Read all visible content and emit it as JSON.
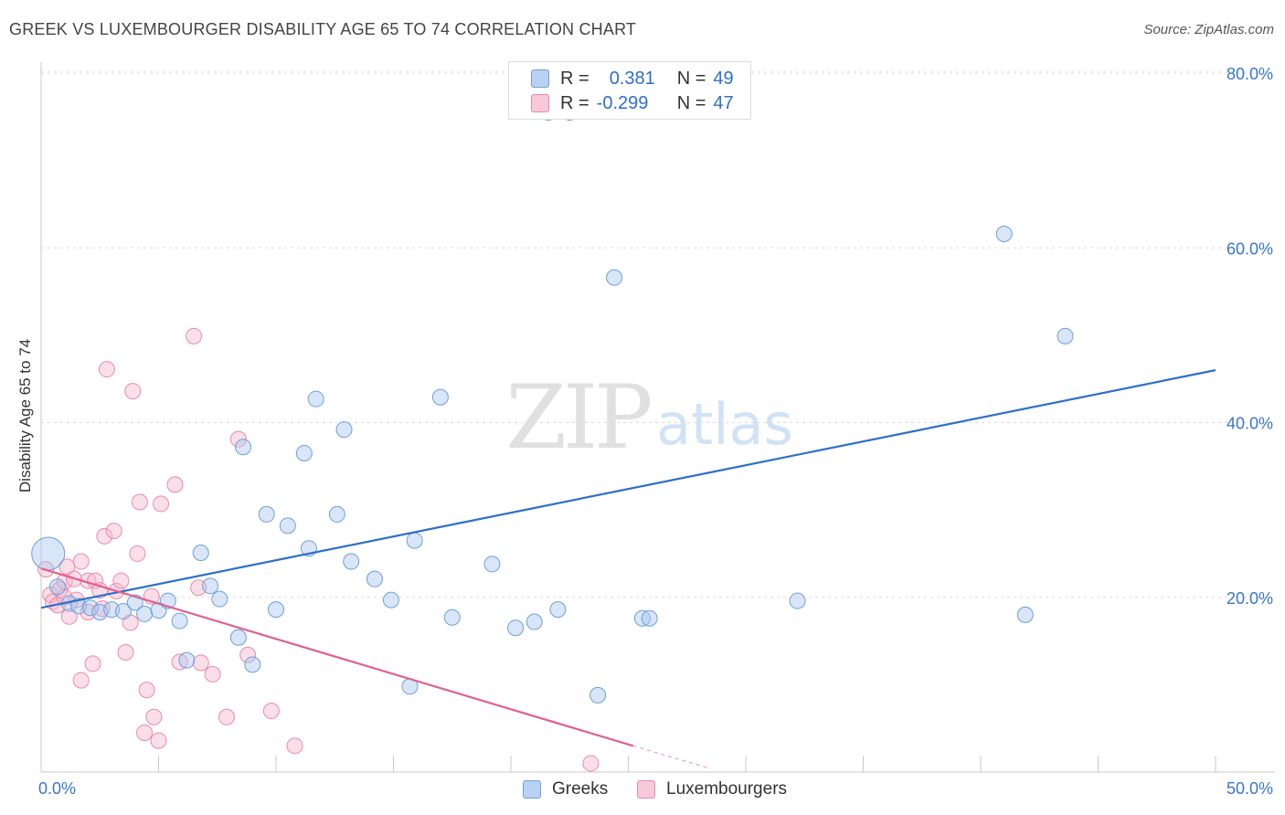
{
  "title": "GREEK VS LUXEMBOURGER DISABILITY AGE 65 TO 74 CORRELATION CHART",
  "source": "Source: ZipAtlas.com",
  "watermark": {
    "zip": "ZIP",
    "atlas": "atlas"
  },
  "legend": {
    "r_label": "R =",
    "n_label": "N =",
    "greeks": {
      "r": "0.381",
      "n": "49"
    },
    "luxembourgers": {
      "r": "-0.299",
      "n": "47"
    }
  },
  "colors": {
    "blue_fill": "#a9c8f0",
    "blue_stroke": "#6f9fd8",
    "blue_line": "#2c6fcb",
    "pink_fill": "#f6b9cd",
    "pink_stroke": "#e88aaa",
    "pink_line": "#e0608e",
    "axis_text": "#3a76c8"
  },
  "chart_data": {
    "type": "scatter",
    "title": "GREEK VS LUXEMBOURGER DISABILITY AGE 65 TO 74 CORRELATION CHART",
    "xlabel": "",
    "ylabel": "Disability Age 65 to 74",
    "xlim": [
      0,
      50
    ],
    "ylim": [
      0,
      80
    ],
    "x_tick_labels": [
      "0.0%",
      "50.0%"
    ],
    "y_ticks": [
      20,
      40,
      60,
      80
    ],
    "y_tick_labels": [
      "20.0%",
      "40.0%",
      "60.0%",
      "80.0%"
    ],
    "series": [
      {
        "name": "Greeks",
        "r": 0.381,
        "n": 49,
        "trend": {
          "x": [
            0,
            50
          ],
          "y": [
            18.8,
            46.0
          ]
        },
        "points": [
          [
            0.3,
            25.0,
            "large"
          ],
          [
            0.7,
            21.2
          ],
          [
            1.2,
            19.3
          ],
          [
            1.6,
            19.0
          ],
          [
            2.1,
            18.8
          ],
          [
            2.5,
            18.3
          ],
          [
            3.0,
            18.6
          ],
          [
            3.5,
            18.4
          ],
          [
            4.0,
            19.4
          ],
          [
            4.4,
            18.1
          ],
          [
            5.0,
            18.5
          ],
          [
            5.4,
            19.6
          ],
          [
            5.9,
            17.3
          ],
          [
            6.2,
            12.8
          ],
          [
            6.8,
            25.1
          ],
          [
            7.2,
            21.3
          ],
          [
            7.6,
            19.8
          ],
          [
            8.4,
            15.4
          ],
          [
            8.6,
            37.2
          ],
          [
            9.0,
            12.3
          ],
          [
            9.6,
            29.5
          ],
          [
            10.0,
            18.6
          ],
          [
            10.5,
            28.2
          ],
          [
            11.2,
            36.5
          ],
          [
            11.4,
            25.6
          ],
          [
            11.7,
            42.7
          ],
          [
            12.6,
            29.5
          ],
          [
            12.9,
            39.2
          ],
          [
            13.2,
            24.1
          ],
          [
            14.2,
            22.1
          ],
          [
            14.9,
            19.7
          ],
          [
            15.7,
            9.8
          ],
          [
            15.9,
            26.5
          ],
          [
            17.0,
            42.9
          ],
          [
            17.5,
            17.7
          ],
          [
            19.2,
            23.8
          ],
          [
            20.2,
            16.5
          ],
          [
            21.0,
            17.2
          ],
          [
            21.6,
            75.5
          ],
          [
            22.0,
            18.6
          ],
          [
            22.5,
            75.5
          ],
          [
            23.7,
            8.8
          ],
          [
            24.4,
            56.6
          ],
          [
            25.6,
            17.6
          ],
          [
            25.9,
            17.6
          ],
          [
            32.2,
            19.6
          ],
          [
            41.0,
            61.6
          ],
          [
            41.9,
            18.0
          ],
          [
            43.6,
            49.9
          ]
        ]
      },
      {
        "name": "Luxembourgers",
        "r": -0.299,
        "n": 47,
        "trend": {
          "x": [
            0,
            25.2
          ],
          "y": [
            23.3,
            3.0
          ],
          "dashed_to": [
            28.5,
            0.4
          ]
        },
        "points": [
          [
            0.2,
            23.2
          ],
          [
            0.4,
            20.3
          ],
          [
            0.5,
            19.5
          ],
          [
            0.7,
            19.1
          ],
          [
            0.8,
            20.9
          ],
          [
            1.0,
            21.8
          ],
          [
            1.0,
            20.0
          ],
          [
            1.1,
            23.5
          ],
          [
            1.2,
            17.8
          ],
          [
            1.4,
            22.1
          ],
          [
            1.5,
            19.7
          ],
          [
            1.7,
            10.5
          ],
          [
            1.7,
            24.1
          ],
          [
            2.0,
            18.3
          ],
          [
            2.0,
            21.9
          ],
          [
            2.2,
            12.4
          ],
          [
            2.3,
            21.9
          ],
          [
            2.5,
            20.8
          ],
          [
            2.6,
            18.7
          ],
          [
            2.7,
            27.0
          ],
          [
            2.8,
            46.1
          ],
          [
            3.1,
            27.6
          ],
          [
            3.2,
            20.7
          ],
          [
            3.4,
            21.9
          ],
          [
            3.6,
            13.7
          ],
          [
            3.8,
            17.1
          ],
          [
            3.9,
            43.6
          ],
          [
            4.1,
            25.0
          ],
          [
            4.2,
            30.9
          ],
          [
            4.4,
            4.5
          ],
          [
            4.5,
            9.4
          ],
          [
            4.7,
            20.1
          ],
          [
            4.8,
            6.3
          ],
          [
            5.0,
            3.6
          ],
          [
            5.1,
            30.7
          ],
          [
            5.7,
            32.9
          ],
          [
            5.9,
            12.6
          ],
          [
            6.5,
            49.9
          ],
          [
            6.7,
            21.1
          ],
          [
            6.8,
            12.5
          ],
          [
            7.3,
            11.2
          ],
          [
            7.9,
            6.3
          ],
          [
            8.4,
            38.1
          ],
          [
            8.8,
            13.4
          ],
          [
            9.8,
            7.0
          ],
          [
            10.8,
            3.0
          ],
          [
            23.4,
            1.0
          ]
        ]
      }
    ]
  }
}
